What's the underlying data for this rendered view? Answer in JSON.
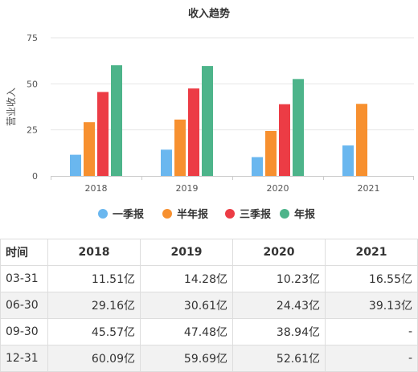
{
  "chart_data": {
    "type": "bar",
    "title": "收入趋势",
    "ylabel": "营业收入",
    "xlabel": "",
    "ylim": [
      0,
      75
    ],
    "yticks": [
      0,
      25,
      50,
      75
    ],
    "grid": true,
    "legend_position": "bottom",
    "categories": [
      "2018",
      "2019",
      "2020",
      "2021"
    ],
    "series": [
      {
        "name": "一季报",
        "color": "#6ab7ef",
        "values": [
          11.51,
          14.28,
          10.23,
          16.55
        ]
      },
      {
        "name": "半年报",
        "color": "#f7902f",
        "values": [
          29.16,
          30.61,
          24.43,
          39.13
        ]
      },
      {
        "name": "三季报",
        "color": "#ec3c45",
        "values": [
          45.57,
          47.48,
          38.94,
          null
        ]
      },
      {
        "name": "年报",
        "color": "#4db48a",
        "values": [
          60.09,
          59.69,
          52.61,
          null
        ]
      }
    ]
  },
  "table": {
    "headers": [
      "时间",
      "2018",
      "2019",
      "2020",
      "2021"
    ],
    "rows": [
      [
        "03-31",
        "11.51亿",
        "14.28亿",
        "10.23亿",
        "16.55亿"
      ],
      [
        "06-30",
        "29.16亿",
        "30.61亿",
        "24.43亿",
        "39.13亿"
      ],
      [
        "09-30",
        "45.57亿",
        "47.48亿",
        "38.94亿",
        "-"
      ],
      [
        "12-31",
        "60.09亿",
        "59.69亿",
        "52.61亿",
        "-"
      ]
    ]
  }
}
